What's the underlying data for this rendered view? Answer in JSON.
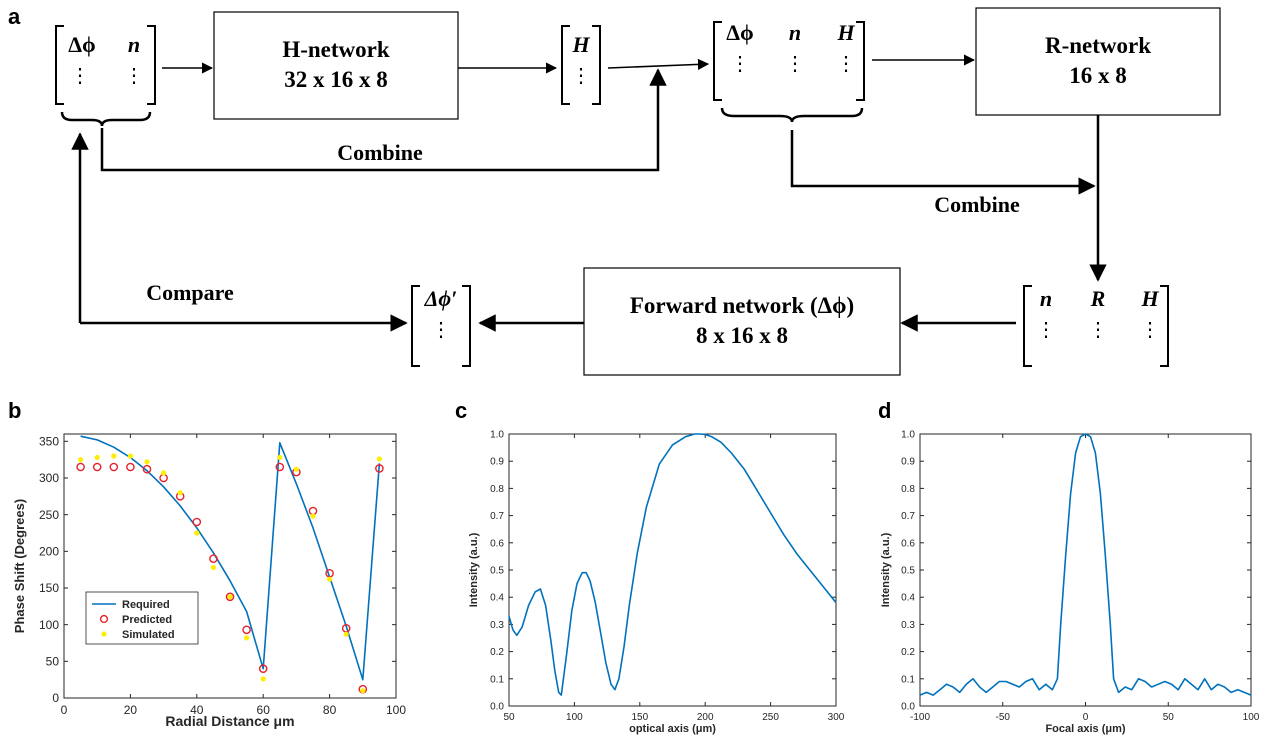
{
  "panels": {
    "a": "a",
    "b": "b",
    "c": "c",
    "d": "d"
  },
  "flowchart": {
    "input_matrix": {
      "col1": "Δϕ",
      "col2": "n"
    },
    "h_network": {
      "line1": "H-network",
      "line2": "32 x 16 x 8"
    },
    "h_matrix": {
      "col1": "H"
    },
    "combined_matrix": {
      "col1": "Δϕ",
      "col2": "n",
      "col3": "H"
    },
    "r_network": {
      "line1": "R-network",
      "line2": "16 x 8"
    },
    "combine_label_1": "Combine",
    "combine_label_2": "Combine",
    "nrh_matrix": {
      "col1": "n",
      "col2": "R",
      "col3": "H"
    },
    "forward_network": {
      "line1": "Forward network (Δϕ)",
      "line2": "8 x 16 x 8"
    },
    "output_matrix": {
      "col1": "Δϕ′"
    },
    "compare_label": "Compare",
    "vdots": "⋮"
  },
  "chart_data": [
    {
      "id": "b",
      "type": "line",
      "xlabel": "Radial Distance μm",
      "ylabel": "Phase Shift (Degrees)",
      "xlim": [
        0,
        100
      ],
      "ylim": [
        0,
        360
      ],
      "xticks": [
        0,
        20,
        40,
        60,
        80,
        100
      ],
      "yticks": [
        0,
        50,
        100,
        150,
        200,
        250,
        300,
        350
      ],
      "legend_position": "lower-left",
      "series": [
        {
          "name": "Required",
          "style": "line",
          "color": "#0072BD",
          "x": [
            5,
            10,
            15,
            20,
            25,
            30,
            35,
            40,
            45,
            50,
            55,
            60,
            65,
            70,
            75,
            80,
            85,
            90,
            95
          ],
          "y": [
            357,
            352,
            342,
            328,
            310,
            288,
            262,
            232,
            198,
            160,
            118,
            40,
            348,
            292,
            232,
            165,
            98,
            25,
            320
          ]
        },
        {
          "name": "Predicted",
          "style": "circle",
          "color": "#e8202a",
          "x": [
            5,
            10,
            15,
            20,
            25,
            30,
            35,
            40,
            45,
            50,
            55,
            60,
            65,
            70,
            75,
            80,
            85,
            90,
            95
          ],
          "y": [
            315,
            315,
            315,
            315,
            312,
            300,
            275,
            240,
            190,
            138,
            93,
            40,
            315,
            308,
            255,
            170,
            95,
            12,
            313
          ]
        },
        {
          "name": "Simulated",
          "style": "dot",
          "color": "#ffee00",
          "x": [
            5,
            10,
            15,
            20,
            25,
            30,
            35,
            40,
            45,
            50,
            55,
            60,
            65,
            70,
            75,
            80,
            85,
            90,
            95
          ],
          "y": [
            325,
            328,
            330,
            330,
            322,
            307,
            280,
            225,
            178,
            138,
            82,
            26,
            328,
            312,
            248,
            162,
            87,
            10,
            326
          ]
        }
      ]
    },
    {
      "id": "c",
      "type": "line",
      "xlabel": "optical axis (μm)",
      "ylabel": "Intensity (a.u.)",
      "xlim": [
        50,
        300
      ],
      "ylim": [
        0,
        1
      ],
      "xticks": [
        50,
        100,
        150,
        200,
        250,
        300
      ],
      "yticks": [
        0,
        0.1,
        0.2,
        0.3,
        0.4,
        0.5,
        0.6,
        0.7,
        0.8,
        0.9,
        1.0
      ],
      "series": [
        {
          "color": "#0072BD",
          "x": [
            50,
            53,
            56,
            60,
            65,
            70,
            74,
            78,
            82,
            85,
            88,
            90,
            94,
            98,
            102,
            106,
            109,
            112,
            116,
            120,
            124,
            128,
            131,
            134,
            138,
            142,
            148,
            155,
            165,
            175,
            185,
            192,
            196,
            200,
            205,
            212,
            220,
            230,
            240,
            250,
            260,
            270,
            280,
            290,
            300
          ],
          "y": [
            0.33,
            0.28,
            0.26,
            0.29,
            0.37,
            0.42,
            0.43,
            0.37,
            0.24,
            0.13,
            0.05,
            0.04,
            0.19,
            0.35,
            0.45,
            0.49,
            0.49,
            0.46,
            0.38,
            0.27,
            0.16,
            0.08,
            0.06,
            0.1,
            0.22,
            0.37,
            0.56,
            0.73,
            0.89,
            0.96,
            0.99,
            1.0,
            1.0,
            0.998,
            0.99,
            0.97,
            0.93,
            0.87,
            0.79,
            0.71,
            0.63,
            0.56,
            0.5,
            0.44,
            0.38
          ]
        }
      ]
    },
    {
      "id": "d",
      "type": "line",
      "xlabel": "Focal axis (μm)",
      "ylabel": "Intensity (a.u.)",
      "xlim": [
        -100,
        100
      ],
      "ylim": [
        0,
        1
      ],
      "xticks": [
        -100,
        -50,
        0,
        50,
        100
      ],
      "yticks": [
        0,
        0.1,
        0.2,
        0.3,
        0.4,
        0.5,
        0.6,
        0.7,
        0.8,
        0.9,
        1.0
      ],
      "series": [
        {
          "color": "#0072BD",
          "x": [
            -100,
            -96,
            -92,
            -88,
            -84,
            -80,
            -76,
            -72,
            -68,
            -64,
            -60,
            -56,
            -52,
            -48,
            -44,
            -40,
            -36,
            -32,
            -28,
            -24,
            -20,
            -17,
            -15,
            -12,
            -9,
            -6,
            -3,
            0,
            3,
            6,
            9,
            12,
            15,
            17,
            20,
            24,
            28,
            32,
            36,
            40,
            44,
            48,
            52,
            56,
            60,
            64,
            68,
            72,
            76,
            80,
            84,
            88,
            92,
            96,
            100
          ],
          "y": [
            0.04,
            0.05,
            0.04,
            0.06,
            0.08,
            0.07,
            0.05,
            0.08,
            0.1,
            0.07,
            0.05,
            0.07,
            0.09,
            0.09,
            0.08,
            0.07,
            0.09,
            0.1,
            0.06,
            0.08,
            0.06,
            0.1,
            0.3,
            0.55,
            0.78,
            0.93,
            0.99,
            1.0,
            0.99,
            0.93,
            0.78,
            0.55,
            0.3,
            0.1,
            0.05,
            0.07,
            0.06,
            0.1,
            0.09,
            0.07,
            0.08,
            0.09,
            0.08,
            0.06,
            0.1,
            0.08,
            0.06,
            0.1,
            0.06,
            0.08,
            0.07,
            0.05,
            0.06,
            0.05,
            0.04
          ]
        }
      ]
    }
  ]
}
